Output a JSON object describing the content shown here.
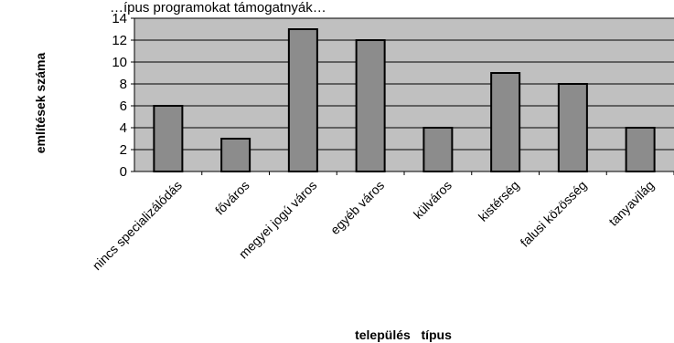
{
  "chart_data": {
    "type": "bar",
    "top_text": "…ípus programokat támogatnyák…",
    "categories": [
      "nincs specializálódás",
      "főváros",
      "megyei jogú város",
      "egyéb város",
      "külváros",
      "kistérség",
      "falusi közösség",
      "tanyavilág"
    ],
    "values": [
      6,
      3,
      13,
      12,
      4,
      9,
      8,
      4
    ],
    "xlabel": "település   típus",
    "ylabel": "említések száma",
    "ylim": [
      0,
      14
    ],
    "yticks": [
      0,
      2,
      4,
      6,
      8,
      10,
      12,
      14
    ],
    "grid": true,
    "colors": {
      "plot_bg": "#c0c0c0",
      "bar": "#8c8c8c",
      "bar_edge": "#000000",
      "grid": "#000000"
    }
  }
}
